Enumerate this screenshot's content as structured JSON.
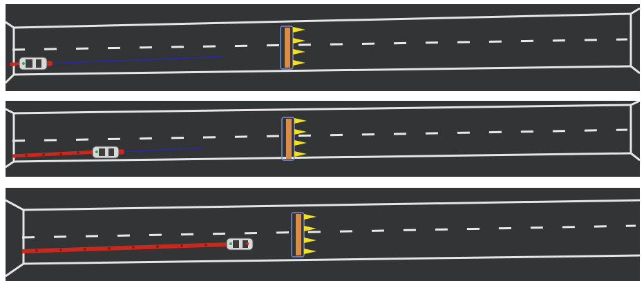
{
  "figure": {
    "panels": [
      {
        "id": "top",
        "vehicle_progress": 0.03,
        "trail_length_fraction": 0.0,
        "planned_path_fraction": 0.33
      },
      {
        "id": "middle",
        "vehicle_progress": 0.15,
        "trail_length_fraction": 0.14,
        "planned_path_fraction": 0.16
      },
      {
        "id": "bottom",
        "vehicle_progress": 0.36,
        "trail_length_fraction": 0.33,
        "planned_path_fraction": 0.0
      }
    ],
    "obstacle": {
      "type": "spike-barrier",
      "spike_count": 4
    }
  },
  "colors": {
    "asphalt": "#333436",
    "lane_marking": "#e9e9e9",
    "trail": "#c8281e",
    "planned_path": "#2a2aa6",
    "barrier_fill": "#d98c4a",
    "barrier_outline": "#7a8ccf",
    "spike": "#f2e023"
  },
  "icons": {
    "vehicle": "car-top-view-icon",
    "spike": "spike-icon"
  }
}
